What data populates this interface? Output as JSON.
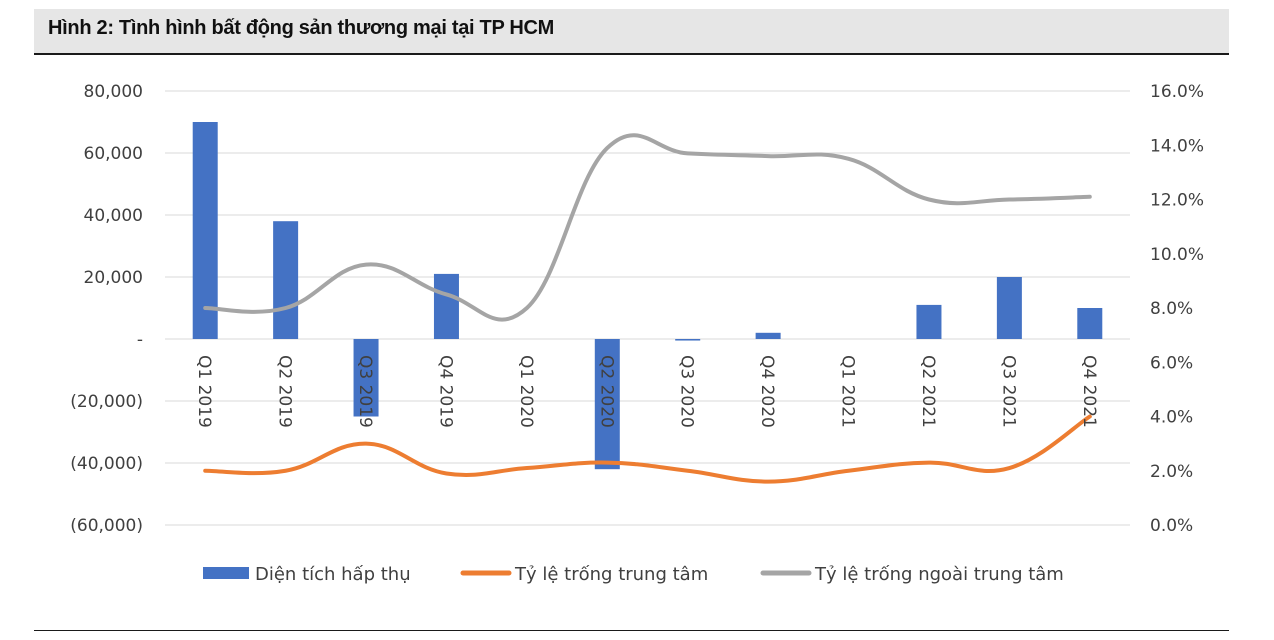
{
  "figure": {
    "title": "Hình 2: Tình hình bất động sản thương mại tại TP HCM"
  },
  "colors": {
    "bar": "#4472c4",
    "orange": "#ed7d31",
    "gray": "#a5a5a5",
    "grid": "#d9d9d9",
    "title_bg": "#e6e6e6"
  },
  "chart_data": {
    "type": "bar",
    "title": "",
    "categories": [
      "Q1 2019",
      "Q2 2019",
      "Q3 2019",
      "Q4 2019",
      "Q1 2020",
      "Q2 2020",
      "Q3 2020",
      "Q4 2020",
      "Q1 2021",
      "Q2 2021",
      "Q3 2021",
      "Q4 2021"
    ],
    "y_left": {
      "ylim": [
        -60000,
        80000
      ],
      "ticks": [
        80000,
        60000,
        40000,
        20000,
        0,
        -20000,
        -40000,
        -60000
      ],
      "tick_labels": [
        "80,000",
        "60,000",
        "40,000",
        "20,000",
        "-",
        "(20,000)",
        "(40,000)",
        "(60,000)"
      ]
    },
    "y_right": {
      "ylim": [
        0,
        16
      ],
      "ticks": [
        16,
        14,
        12,
        10,
        8,
        6,
        4,
        2,
        0
      ],
      "tick_labels": [
        "16.0%",
        "14.0%",
        "12.0%",
        "10.0%",
        "8.0%",
        "6.0%",
        "4.0%",
        "2.0%",
        "0.0%"
      ]
    },
    "grid": true,
    "legend_position": "bottom",
    "series": [
      {
        "name": "Diện tích hấp thụ",
        "type": "bar",
        "axis": "left",
        "values": [
          70000,
          38000,
          -25000,
          21000,
          0,
          -42000,
          -500,
          2000,
          0,
          11000,
          20000,
          10000
        ]
      },
      {
        "name": "Tỷ lệ trống trung tâm",
        "type": "line",
        "axis": "right",
        "values": [
          2.0,
          2.0,
          3.0,
          1.9,
          2.1,
          2.3,
          2.0,
          1.6,
          2.0,
          2.3,
          2.1,
          4.0
        ]
      },
      {
        "name": "Tỷ lệ trống ngoài trung tâm",
        "type": "line",
        "axis": "right",
        "values": [
          8.0,
          8.0,
          9.6,
          8.5,
          8.0,
          13.9,
          13.7,
          13.6,
          13.5,
          12.0,
          12.0,
          12.1
        ]
      }
    ]
  }
}
